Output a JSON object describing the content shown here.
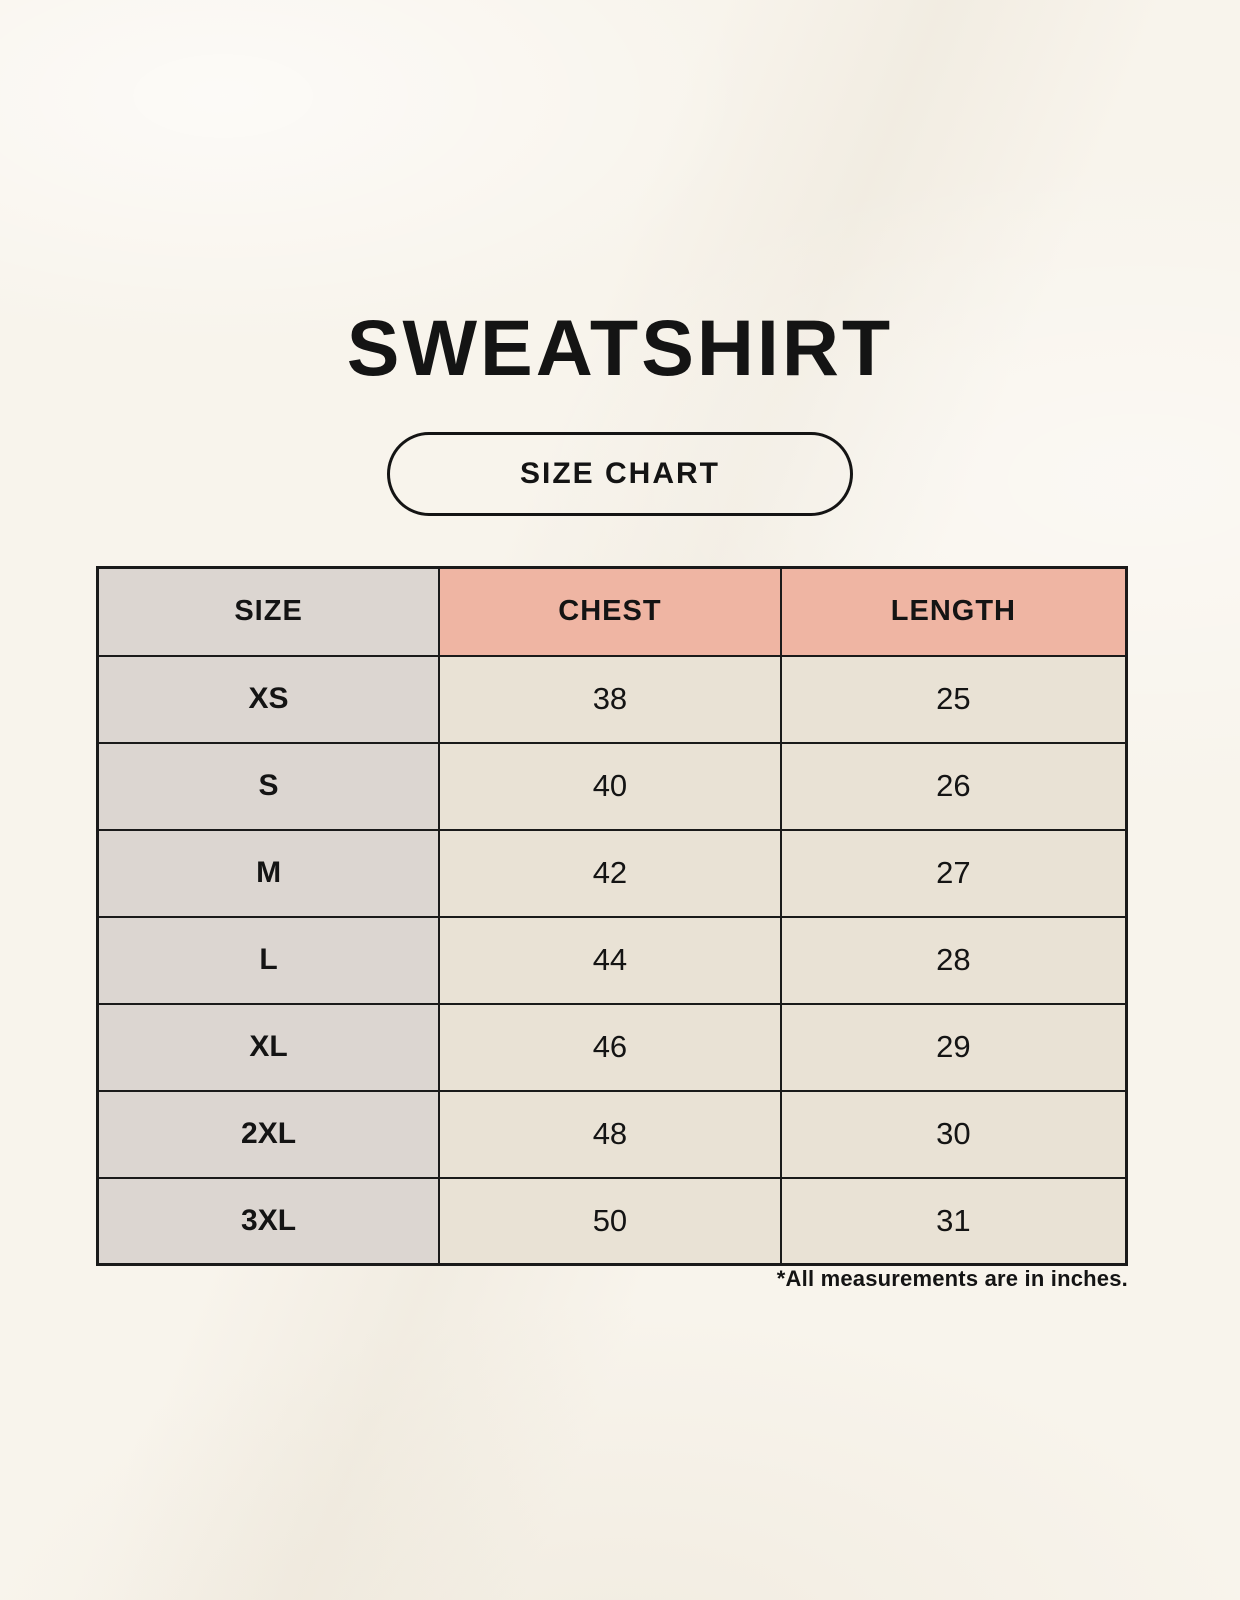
{
  "page": {
    "title": "SWEATSHIRT",
    "size_chart_button": "SIZE CHART",
    "footnote": "*All measurements are in inches."
  },
  "chart_data": {
    "type": "table",
    "title": "SWEATSHIRT",
    "subtitle": "SIZE CHART",
    "columns": [
      "SIZE",
      "CHEST",
      "LENGTH"
    ],
    "rows": [
      {
        "size": "XS",
        "chest": 38,
        "length": 25
      },
      {
        "size": "S",
        "chest": 40,
        "length": 26
      },
      {
        "size": "M",
        "chest": 42,
        "length": 27
      },
      {
        "size": "L",
        "chest": 44,
        "length": 28
      },
      {
        "size": "XL",
        "chest": 46,
        "length": 29
      },
      {
        "size": "2XL",
        "chest": 48,
        "length": 30
      },
      {
        "size": "3XL",
        "chest": 50,
        "length": 31
      }
    ],
    "units_note": "*All measurements are in inches.",
    "layout": {
      "grid": "table-borders",
      "legend": "none"
    }
  },
  "colors": {
    "background": "#f8f4ec",
    "size_column_fill": "#dcd6d1",
    "measure_header_fill": "#efb5a3",
    "data_cell_fill": "#e9e2d5",
    "border": "#1a1a1a",
    "text": "#141414"
  }
}
